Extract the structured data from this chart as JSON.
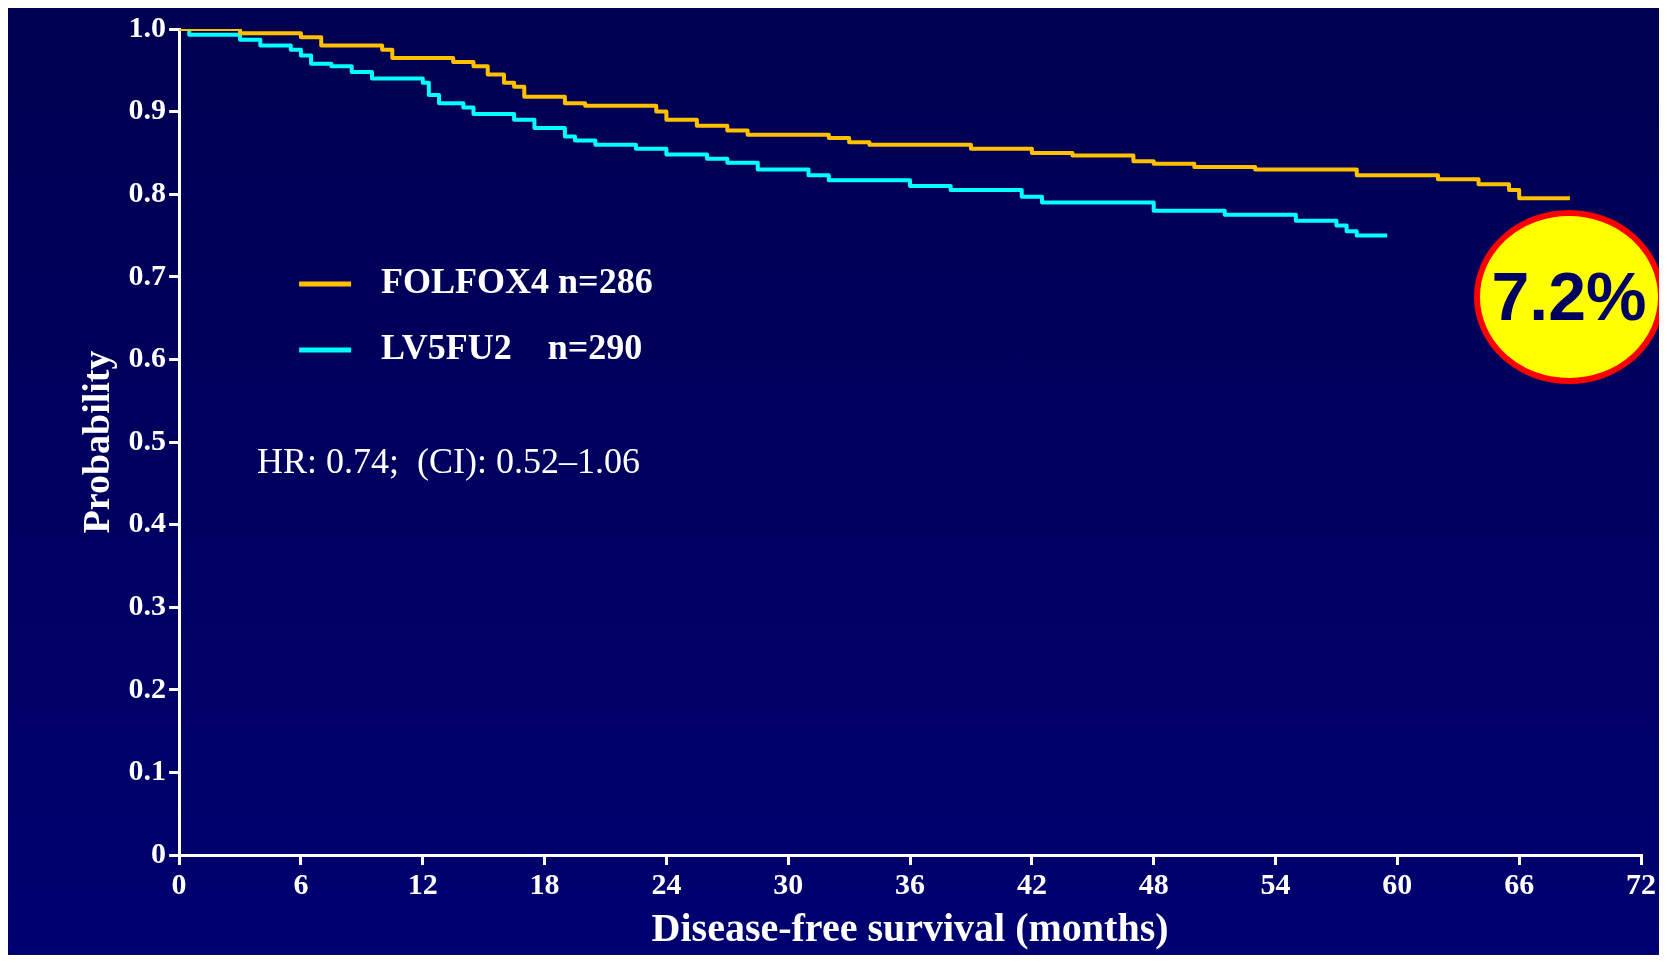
{
  "chart_data": {
    "type": "step",
    "xlabel": "Disease-free survival (months)",
    "ylabel": "Probability",
    "xlim": [
      0,
      72
    ],
    "ylim": [
      0,
      1
    ],
    "xticks": [
      0,
      6,
      12,
      18,
      24,
      30,
      36,
      42,
      48,
      54,
      60,
      66,
      72
    ],
    "yticks": [
      {
        "value": 0,
        "label": "0"
      },
      0.1,
      0.2,
      0.3,
      0.4,
      0.5,
      0.6,
      0.7,
      0.8,
      0.9,
      {
        "value": 1,
        "label": "1.0"
      }
    ],
    "grid": false,
    "legend": "top left",
    "marker": "none",
    "line_style": "solid",
    "series": [
      {
        "name": "FOLFOX4 n=286",
        "color": "#ffc000",
        "x": [
          0,
          3,
          6,
          7,
          10,
          10.5,
          13.5,
          14.5,
          15.2,
          16,
          16.5,
          17,
          19,
          20,
          23.5,
          24,
          25.5,
          27,
          28,
          32,
          33,
          34,
          39,
          42,
          44,
          47,
          48,
          50,
          53,
          58,
          62,
          64,
          65.5,
          66,
          68.5
        ],
        "values": [
          1,
          0.995,
          0.99,
          0.98,
          0.975,
          0.965,
          0.96,
          0.955,
          0.945,
          0.935,
          0.93,
          0.918,
          0.91,
          0.907,
          0.9,
          0.89,
          0.883,
          0.877,
          0.872,
          0.868,
          0.863,
          0.86,
          0.855,
          0.85,
          0.847,
          0.84,
          0.837,
          0.833,
          0.83,
          0.823,
          0.818,
          0.812,
          0.805,
          0.795,
          0.795
        ]
      },
      {
        "name": "LV5FU2    n=290",
        "color": "#00ffff",
        "x": [
          0,
          0.5,
          3,
          4,
          5.5,
          6,
          6.5,
          7.5,
          8.5,
          9.5,
          12,
          12.3,
          12.8,
          14,
          14.5,
          16.5,
          17.5,
          19,
          19.5,
          20.5,
          22.5,
          24,
          26,
          27,
          28.5,
          31,
          32,
          36,
          38,
          41.5,
          42.5,
          48,
          51.5,
          55,
          57,
          57.5,
          58,
          59.5
        ],
        "values": [
          1,
          0.993,
          0.987,
          0.98,
          0.975,
          0.968,
          0.958,
          0.955,
          0.948,
          0.94,
          0.935,
          0.92,
          0.91,
          0.905,
          0.897,
          0.89,
          0.88,
          0.87,
          0.865,
          0.86,
          0.855,
          0.848,
          0.843,
          0.838,
          0.83,
          0.823,
          0.817,
          0.81,
          0.805,
          0.797,
          0.79,
          0.78,
          0.775,
          0.768,
          0.762,
          0.755,
          0.75,
          0.75
        ]
      }
    ],
    "annotations": [
      "HR: 0.74;  (CI): 0.52–1.06",
      "7.2%"
    ]
  }
}
